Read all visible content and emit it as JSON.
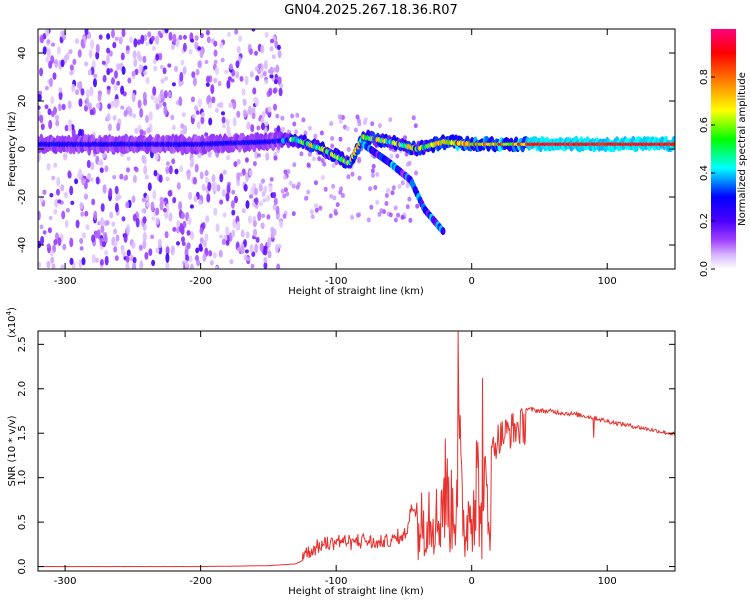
{
  "title": "GN04.2025.267.18.36.R07",
  "chart_data": [
    {
      "type": "heatmap",
      "xlabel": "Height of straight line (km)",
      "ylabel": "Frequency (Hz)",
      "xlim": [
        -320,
        150
      ],
      "ylim": [
        -50,
        50
      ],
      "xticks": [
        -300,
        -200,
        -100,
        0,
        100
      ],
      "yticks": [
        -40,
        -20,
        0,
        20,
        40
      ],
      "colorbar": {
        "label": "Normalized spectral amplitude",
        "range": [
          0.0,
          1.0
        ],
        "ticks": [
          0.0,
          0.2,
          0.4,
          0.6,
          0.8
        ],
        "tick_labels": [
          "0.0",
          "0.2",
          "0.4",
          "0.6",
          "0.8"
        ],
        "colors": [
          "#ffffff",
          "#a040ff",
          "#4000ff",
          "#0000ff",
          "#00ffff",
          "#00ff00",
          "#ffff00",
          "#ff8000",
          "#ff0000",
          "#ff0080"
        ]
      },
      "features": [
        {
          "name": "noise scatter",
          "x_range": [
            -320,
            -140
          ],
          "y_range": [
            -50,
            50
          ],
          "amplitude": 0.15
        },
        {
          "name": "main branch",
          "points": [
            [
              -320,
              2
            ],
            [
              -200,
              2
            ],
            [
              -150,
              3
            ],
            [
              -130,
              4
            ],
            [
              -110,
              0
            ],
            [
              -100,
              -3
            ],
            [
              -90,
              -6
            ],
            [
              -80,
              5
            ],
            [
              -60,
              3
            ],
            [
              -40,
              0
            ],
            [
              -20,
              3
            ],
            [
              0,
              2
            ],
            [
              50,
              2
            ],
            [
              100,
              2
            ],
            [
              150,
              2
            ]
          ],
          "amplitude": 0.9
        },
        {
          "name": "lower branch",
          "points": [
            [
              -80,
              2
            ],
            [
              -60,
              -6
            ],
            [
              -45,
              -13
            ],
            [
              -35,
              -25
            ],
            [
              -20,
              -35
            ]
          ],
          "amplitude": 0.4
        }
      ]
    },
    {
      "type": "line",
      "xlabel": "Height of straight line (km)",
      "ylabel": "SNR (10 * v/v)",
      "multiplier": "(x10",
      "multiplier_exp": "4",
      "multiplier_close": ")",
      "xlim": [
        -320,
        150
      ],
      "ylim": [
        -0.05,
        2.65
      ],
      "xticks": [
        -300,
        -200,
        -100,
        0,
        100
      ],
      "yticks": [
        0.0,
        0.5,
        1.0,
        1.5,
        2.0,
        2.5
      ],
      "ytick_labels": [
        "0.0",
        "0.5",
        "1.0",
        "1.5",
        "2.0",
        "2.5"
      ],
      "series": [
        {
          "name": "SNR",
          "color": "#e8322e",
          "x": [
            -320,
            -250,
            -200,
            -150,
            -130,
            -120,
            -110,
            -100,
            -90,
            -80,
            -70,
            -60,
            -50,
            -45,
            -40,
            -35,
            -30,
            -25,
            -20,
            -15,
            -12,
            -10,
            -8,
            -5,
            0,
            5,
            8,
            10,
            12,
            15,
            20,
            25,
            30,
            35,
            40,
            45,
            50,
            60,
            70,
            80,
            90,
            95,
            100,
            110,
            120,
            130,
            140,
            150
          ],
          "y": [
            0.0,
            0.0,
            0.0,
            0.01,
            0.03,
            0.1,
            0.2,
            0.25,
            0.22,
            0.25,
            0.2,
            0.25,
            0.3,
            0.6,
            0.7,
            1.0,
            1.2,
            0.9,
            1.6,
            1.1,
            1.3,
            2.65,
            1.5,
            0.6,
            1.5,
            1.7,
            0.4,
            1.6,
            1.4,
            1.5,
            1.65,
            1.7,
            1.75,
            1.78,
            1.8,
            1.79,
            1.78,
            1.77,
            1.75,
            1.73,
            1.7,
            1.68,
            1.66,
            1.63,
            1.6,
            1.57,
            1.54,
            1.51
          ]
        }
      ]
    }
  ]
}
